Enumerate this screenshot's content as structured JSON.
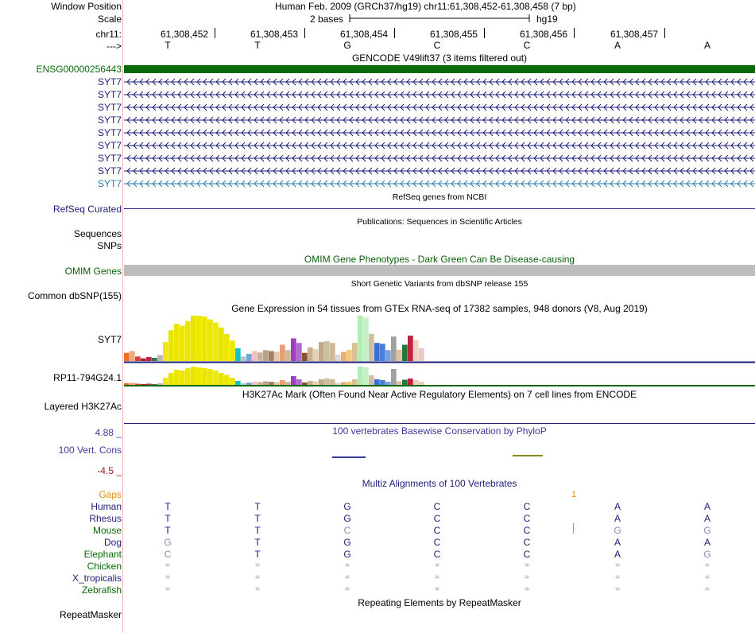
{
  "header": {
    "window_position_label": "Window Position",
    "window_position_value": "Human Feb. 2009 (GRCh37/hg19)   chr11:61,308,452-61,308,458 (7 bp)",
    "scale_label": "Scale",
    "scale_value": "2 bases",
    "assembly": "hg19",
    "chrom_label": "chr11:",
    "strand_label": "--->",
    "ruler_positions": [
      "61,308,452",
      "61,308,453",
      "61,308,454",
      "61,308,455",
      "61,308,456",
      "61,308,457"
    ],
    "bases": [
      "T",
      "T",
      "G",
      "C",
      "C",
      "A",
      "A"
    ]
  },
  "tracks": {
    "gencode_title": "GENCODE V49lift37 (3 items filtered out)",
    "gencode_gene": "ENSG00000256443",
    "syt7_labels": [
      "SYT7",
      "SYT7",
      "SYT7",
      "SYT7",
      "SYT7",
      "SYT7",
      "SYT7",
      "SYT7",
      "SYT7"
    ],
    "refseq_title": "RefSeq genes from NCBI",
    "refseq_label": "RefSeq Curated",
    "pubs_title": "Publications: Sequences in Scientific Articles",
    "pubs_label_seq": "Sequences",
    "pubs_label_snps": "SNPs",
    "omim_title": "OMIM Gene Phenotypes - Dark Green Can Be Disease-causing",
    "omim_label": "OMIM Genes",
    "dbsnp_title": "Short Genetic Variants from dbSNP release 155",
    "dbsnp_label": "Common dbSNP(155)",
    "gtex_title": "Gene Expression in 54 tissues from GTEx RNA-seq of 17382 samples, 948 donors (V8, Aug 2019)",
    "gtex_gene1": "SYT7",
    "gtex_gene2": "RP11-794G24.1",
    "h3k27_title": "H3K27Ac Mark (Often Found Near Active Regulatory Elements) on 7 cell lines from ENCODE",
    "h3k27_label": "Layered H3K27Ac",
    "phylop_title": "100 vertebrates Basewise Conservation by PhyloP",
    "phylop_max": "4.88 _",
    "phylop_label": "100 Vert. Cons",
    "phylop_min": "-4.5 _",
    "multiz_title": "Multiz Alignments of 100 Vertebrates",
    "gaps_label": "Gaps",
    "gaps_mark": "1",
    "repeat_title": "Repeating Elements by RepeatMasker",
    "repeat_label": "RepeatMasker"
  },
  "alignment": {
    "species": [
      "Human",
      "Rhesus",
      "Mouse",
      "Dog",
      "Elephant",
      "Chicken",
      "X_tropicalis",
      "Zebrafish"
    ],
    "rows": [
      [
        "T",
        "T",
        "G",
        "C",
        "C",
        "A",
        "A"
      ],
      [
        "T",
        "T",
        "G",
        "C",
        "C",
        "A",
        "A"
      ],
      [
        "T",
        "T",
        "C",
        "C",
        "C",
        "G",
        "G"
      ],
      [
        "G",
        "T",
        "G",
        "C",
        "C",
        "A",
        "A"
      ],
      [
        "C",
        "T",
        "G",
        "C",
        "C",
        "A",
        "G"
      ],
      [
        "=",
        "=",
        "=",
        "=",
        "=",
        "=",
        "="
      ],
      [
        "=",
        "=",
        "=",
        "=",
        "=",
        "=",
        "="
      ],
      [
        "=",
        "=",
        "=",
        "=",
        "=",
        "=",
        "="
      ]
    ]
  },
  "gtex": {
    "syt7_values": [
      18,
      22,
      10,
      6,
      9,
      7,
      13,
      42,
      68,
      82,
      78,
      88,
      100,
      100,
      98,
      92,
      85,
      74,
      60,
      45,
      28,
      10,
      16,
      22,
      19,
      24,
      22,
      20,
      36,
      24,
      50,
      40,
      18,
      30,
      26,
      42,
      44,
      40,
      14,
      20,
      25,
      40,
      100,
      96,
      60,
      40,
      38,
      24,
      54,
      25,
      36,
      56,
      46,
      28
    ],
    "rp11_values": [
      4,
      5,
      3,
      2,
      3,
      2,
      4,
      18,
      30,
      38,
      36,
      42,
      46,
      44,
      42,
      40,
      36,
      30,
      25,
      18,
      10,
      4,
      6,
      8,
      7,
      9,
      8,
      7,
      12,
      8,
      22,
      14,
      6,
      10,
      9,
      14,
      16,
      14,
      5,
      7,
      8,
      14,
      46,
      44,
      24,
      14,
      12,
      8,
      40,
      9,
      13,
      16,
      12,
      8
    ],
    "colors": [
      "#e8722c",
      "#f2a77b",
      "#e03a3a",
      "#9a2b2b",
      "#c01e60",
      "#3a7a3a",
      "#b5b5b5",
      "#f0e612",
      "#e8e600",
      "#ede500",
      "#efe400",
      "#ece700",
      "#e9e300",
      "#ede800",
      "#eee500",
      "#e9e600",
      "#ecea00",
      "#e6e400",
      "#ece600",
      "#eae800",
      "#12c3c8",
      "#c0c0c0",
      "#6fa8dc",
      "#f5c0c0",
      "#c8b49a",
      "#b8a28a",
      "#a08060",
      "#dec8b0",
      "#e8a070",
      "#d0b89c",
      "#9b3fbf",
      "#b06ad0",
      "#8a5030",
      "#c8b090",
      "#e0d0b8",
      "#c0a888",
      "#c8c0a0",
      "#d0b898",
      "#d8d8d8",
      "#e8b070",
      "#f0c880",
      "#d8c090",
      "#b4ecb4",
      "#c8f0c8",
      "#d0c0a0",
      "#3a6fd8",
      "#4a7fd8",
      "#78a0e0",
      "#a0a0a0",
      "#e0c0a0",
      "#1f7a3a",
      "#c02040",
      "#f0d0c0",
      "#e8c8c8"
    ]
  },
  "colors": {
    "gencode_green": "#0a6a0a",
    "navy": "#1d1d7a",
    "teal": "#2a7aa8",
    "omim_gray": "#bdbdbd",
    "gaps_orange": "#e0900a",
    "phylop_max": "#1d1d7a",
    "phylop_min": "#9a2020"
  }
}
